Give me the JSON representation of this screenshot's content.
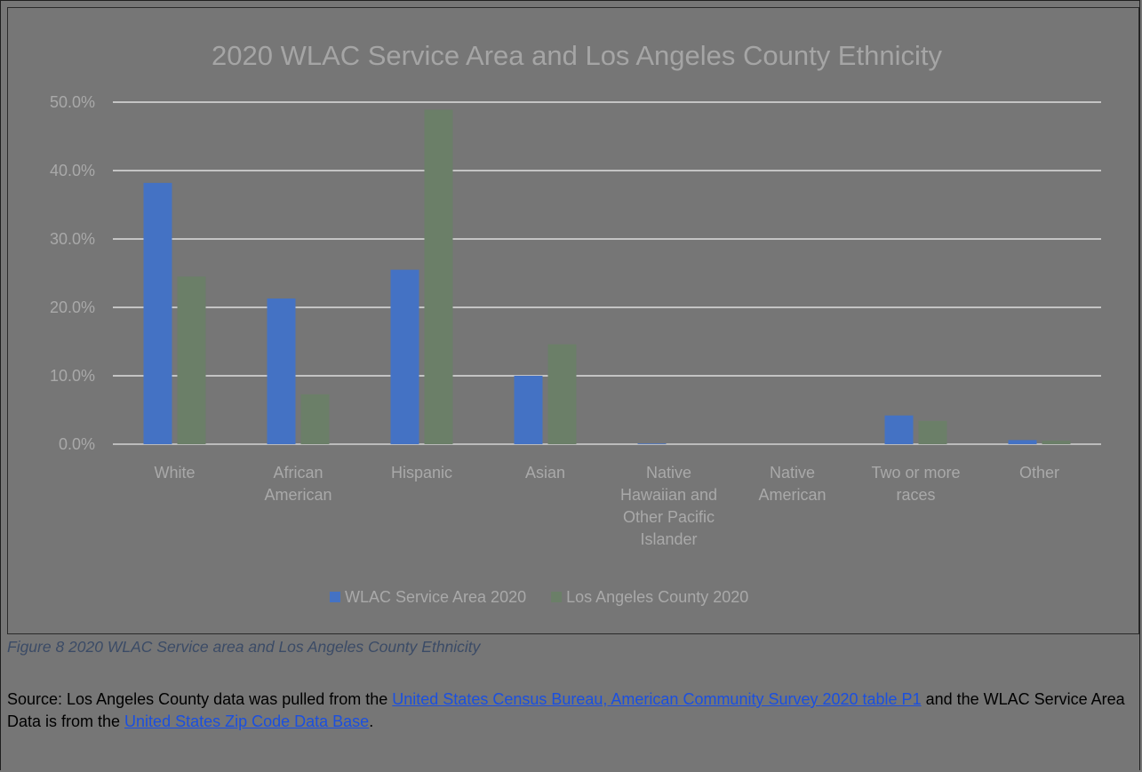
{
  "chart_data": {
    "type": "bar",
    "title": "2020 WLAC Service Area and Los Angeles County Ethnicity",
    "categories": [
      [
        "White"
      ],
      [
        "African",
        "American"
      ],
      [
        "Hispanic"
      ],
      [
        "Asian"
      ],
      [
        "Native",
        "Hawaiian and",
        "Other Pacific",
        "Islander"
      ],
      [
        "Native",
        "American"
      ],
      [
        "Two or more",
        "races"
      ],
      [
        "Other"
      ]
    ],
    "series": [
      {
        "name": "WLAC Service Area 2020",
        "color": "#4472c4",
        "values": [
          38.2,
          21.3,
          25.5,
          10.0,
          0.1,
          0.0,
          4.2,
          0.6
        ]
      },
      {
        "name": "Los Angeles County 2020",
        "color": "#6b7f68",
        "values": [
          24.5,
          7.3,
          48.9,
          14.6,
          0.0,
          0.0,
          3.4,
          0.5
        ]
      }
    ],
    "ylim": [
      0,
      50
    ],
    "yticks": [
      "0.0%",
      "10.0%",
      "20.0%",
      "30.0%",
      "40.0%",
      "50.0%"
    ],
    "grid": true,
    "legend_position": "bottom"
  },
  "caption": "Figure 8 2020 WLAC Service area and Los Angeles County Ethnicity",
  "source": {
    "prefix": "Source: Los Angeles County data was pulled from the ",
    "link1": "United States Census Bureau, American Community Survey 2020 table P1",
    "middle": " and the WLAC Service Area Data is from the ",
    "link2": "United States Zip Code Data Base",
    "suffix": "."
  }
}
